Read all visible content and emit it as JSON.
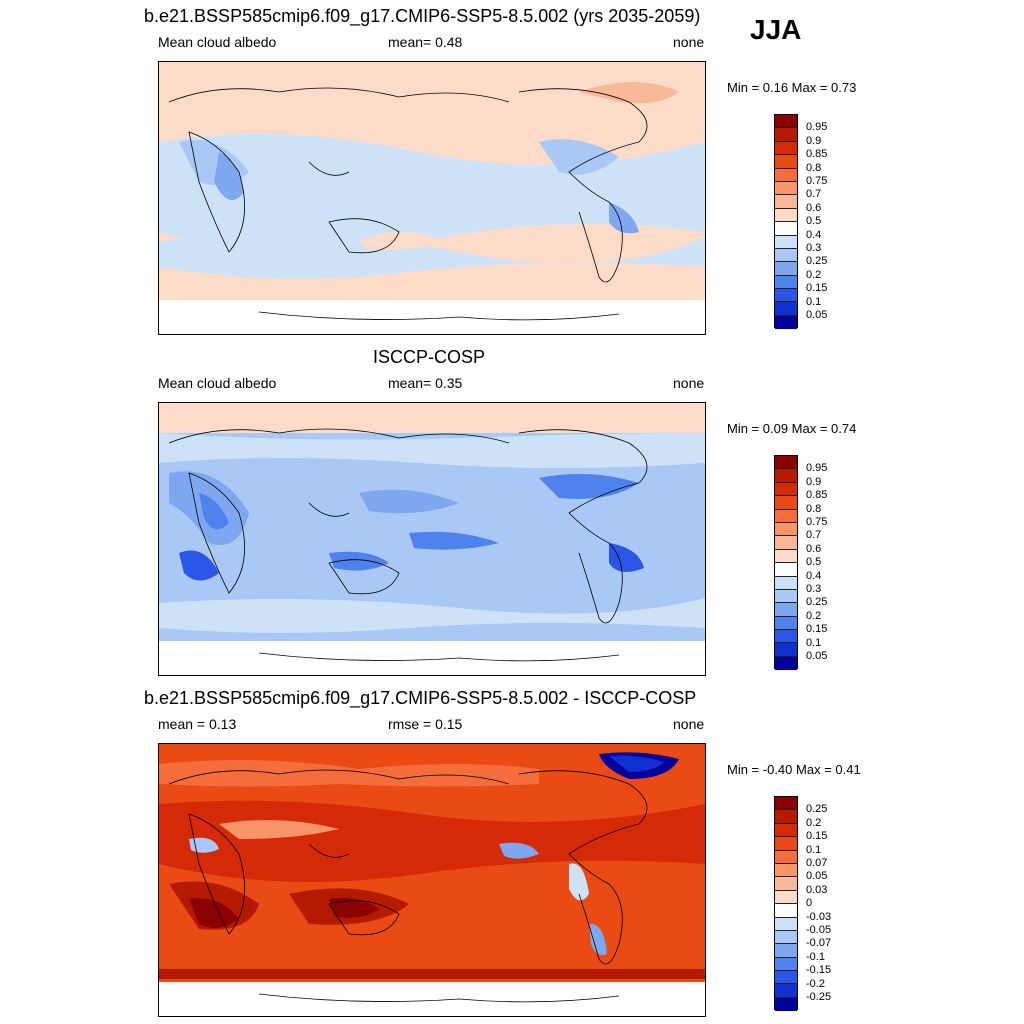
{
  "season": "JJA",
  "panels": [
    {
      "title": "b.e21.BSSP585cmip6.f09_g17.CMIP6-SSP5-8.5.002 (yrs 2035-2059)",
      "left": "Mean cloud albedo",
      "center": "mean=   0.48",
      "right": "none",
      "minmax": "Min =   0.16 Max =   0.73",
      "labels": [
        "0.95",
        "0.9",
        "0.85",
        "0.8",
        "0.75",
        "0.7",
        "0.6",
        "0.5",
        "0.4",
        "0.3",
        "0.25",
        "0.2",
        "0.15",
        "0.1",
        "0.05"
      ],
      "colors": [
        "#8b0000",
        "#b31a00",
        "#d42a08",
        "#ea4a14",
        "#f46d3a",
        "#f79468",
        "#f9b898",
        "#fcdcc8",
        "#ffffff",
        "#cde2f7",
        "#a9c8f5",
        "#7ea7f0",
        "#4f82ec",
        "#2a55e6",
        "#1030d0",
        "#00009a"
      ],
      "field_desc": "mostly light blue / peach"
    },
    {
      "title": "ISCCP-COSP",
      "left": "Mean cloud albedo",
      "center": "mean=   0.35",
      "right": "none",
      "minmax": "Min =   0.09 Max =   0.74",
      "labels": [
        "0.95",
        "0.9",
        "0.85",
        "0.8",
        "0.75",
        "0.7",
        "0.6",
        "0.5",
        "0.4",
        "0.3",
        "0.25",
        "0.2",
        "0.15",
        "0.1",
        "0.05"
      ],
      "colors": [
        "#8b0000",
        "#b31a00",
        "#d42a08",
        "#ea4a14",
        "#f46d3a",
        "#f79468",
        "#f9b898",
        "#fcdcc8",
        "#ffffff",
        "#cde2f7",
        "#a9c8f5",
        "#7ea7f0",
        "#4f82ec",
        "#2a55e6",
        "#1030d0",
        "#00009a"
      ]
    },
    {
      "title": "b.e21.BSSP585cmip6.f09_g17.CMIP6-SSP5-8.5.002 - ISCCP-COSP",
      "left": "mean =   0.13",
      "center": "rmse =   0.15",
      "right": "none",
      "minmax": "Min = -0.40 Max =   0.41",
      "labels": [
        "0.25",
        "0.2",
        "0.15",
        "0.1",
        "0.07",
        "0.05",
        "0.03",
        "0",
        "-0.03",
        "-0.05",
        "-0.07",
        "-0.1",
        "-0.15",
        "-0.2",
        "-0.25"
      ],
      "colors": [
        "#8b0000",
        "#b31a00",
        "#d42a08",
        "#ea4a14",
        "#f46d3a",
        "#f79468",
        "#f9b898",
        "#fcdcc8",
        "#ffffff",
        "#cde2f7",
        "#a9c8f5",
        "#7ea7f0",
        "#4f82ec",
        "#2a55e6",
        "#1030d0",
        "#00009a"
      ]
    }
  ]
}
